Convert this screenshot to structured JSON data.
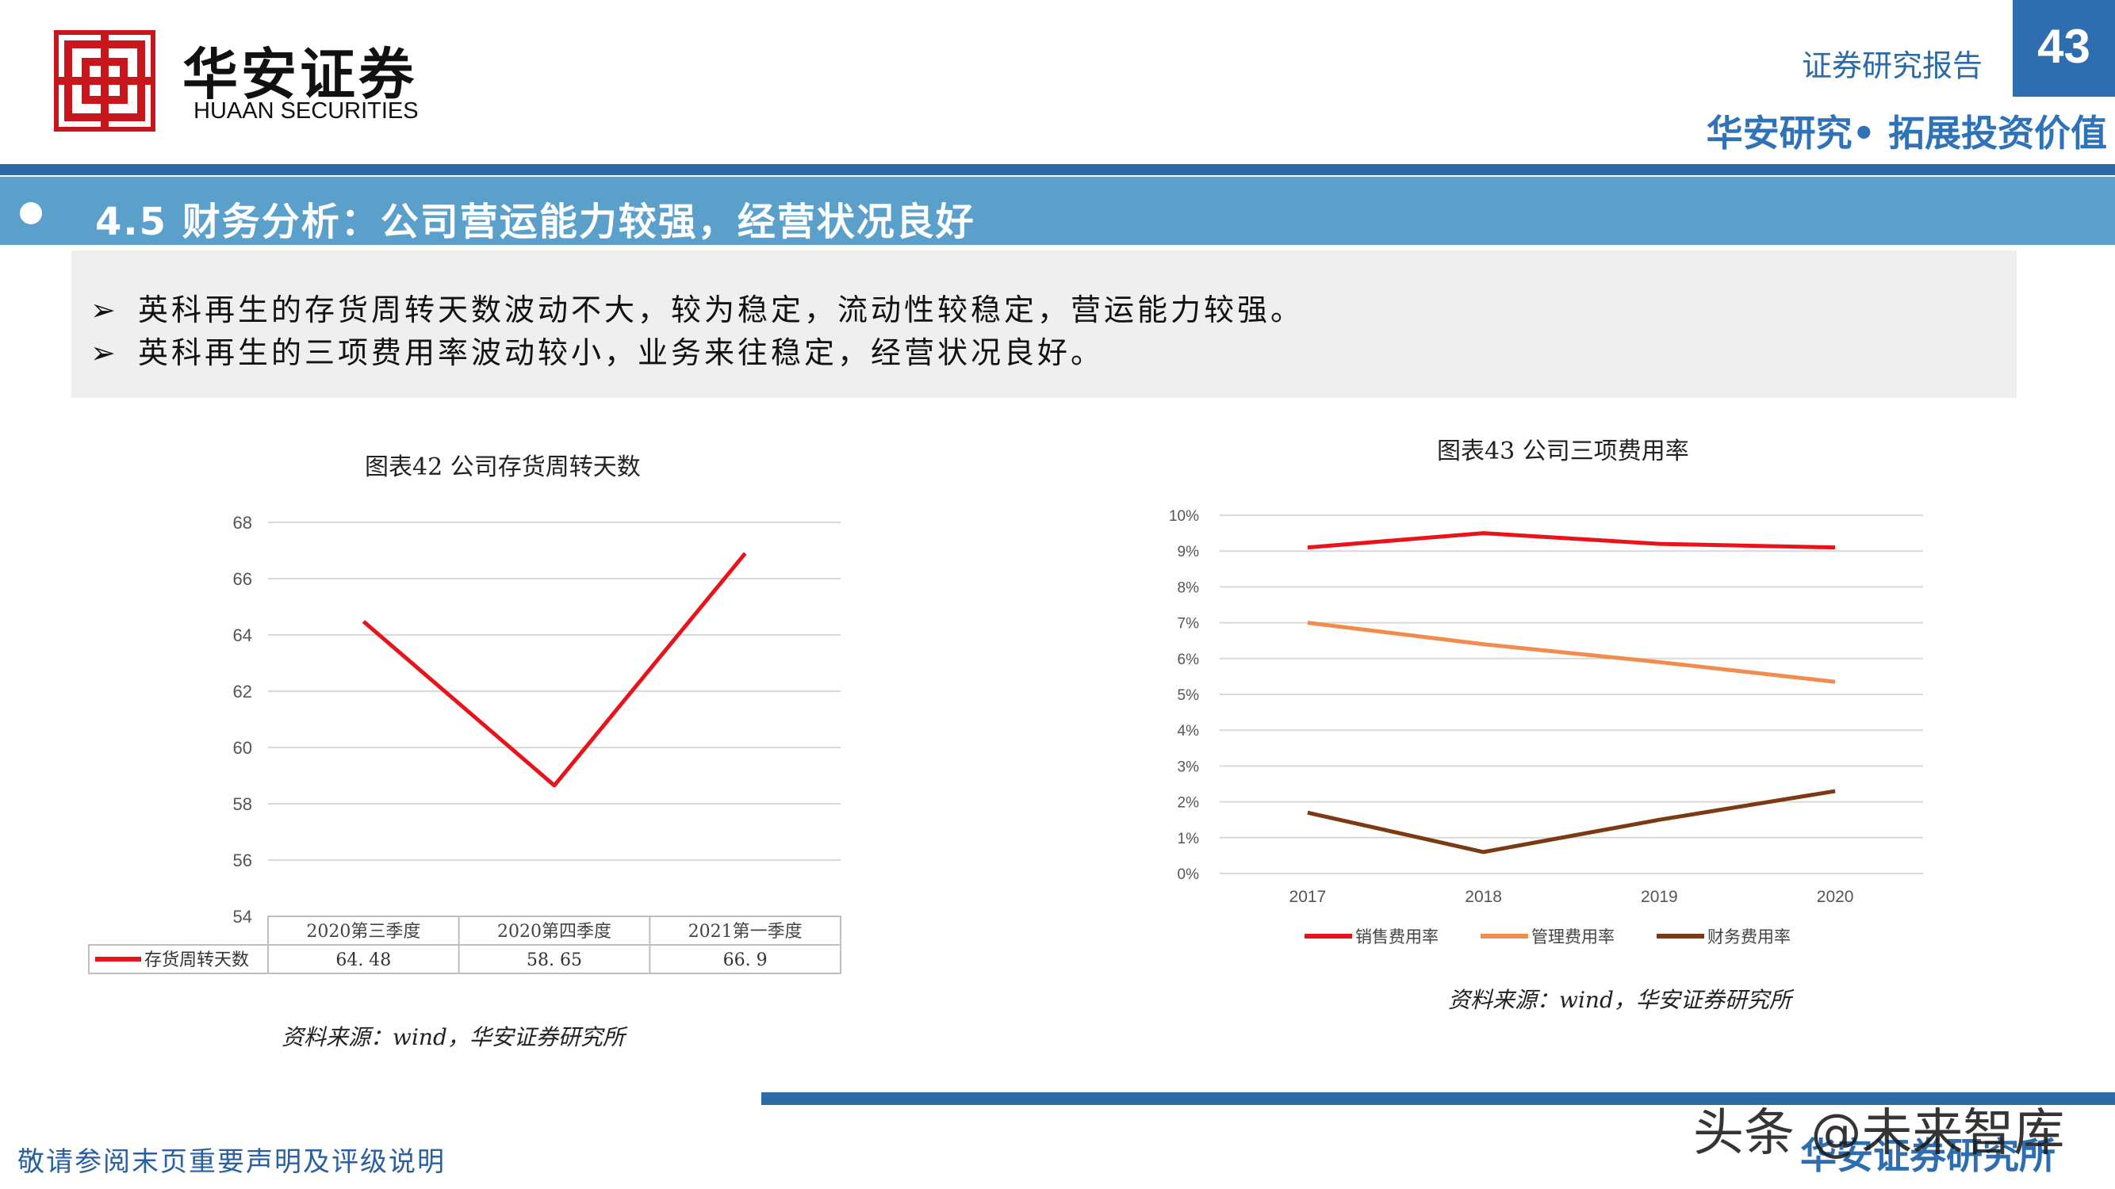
{
  "header": {
    "logo_cn": "华安证券",
    "logo_en": "HUAAN SECURITIES",
    "doc_type": "证券研究报告",
    "page_number": "43",
    "slogan": "华安研究• 拓展投资价值"
  },
  "section": {
    "title": "4.5 财务分析：公司营运能力较强，经营状况良好"
  },
  "bullets": [
    {
      "arrow": "➢",
      "text": "英科再生的存货周转天数波动不大，较为稳定，流动性较稳定，营运能力较强。"
    },
    {
      "arrow": "➢",
      "text": "英科再生的三项费用率波动较小，业务来往稳定，经营状况良好。"
    }
  ],
  "chart_data": [
    {
      "type": "line",
      "title": "图表42 公司存货周转天数",
      "categories": [
        "2020第三季度",
        "2020第四季度",
        "2021第一季度"
      ],
      "series": [
        {
          "name": "存货周转天数",
          "values": [
            64.48,
            58.65,
            66.9
          ],
          "labels": [
            "64. 48",
            "58. 65",
            "66. 9"
          ],
          "color": "#e8141c"
        }
      ],
      "y_ticks": [
        "54",
        "56",
        "58",
        "60",
        "62",
        "64",
        "66",
        "68"
      ],
      "ylim": [
        54,
        68
      ],
      "data_table": true,
      "grid": true,
      "source": "资料来源：wind，华安证券研究所"
    },
    {
      "type": "line",
      "title": "图表43 公司三项费用率",
      "categories": [
        "2017",
        "2018",
        "2019",
        "2020"
      ],
      "series": [
        {
          "name": "销售费用率",
          "values": [
            9.1,
            9.5,
            9.2,
            9.1
          ],
          "color": "#e8141c"
        },
        {
          "name": "管理费用率",
          "values": [
            7.0,
            6.4,
            5.9,
            5.35
          ],
          "color": "#ef8c4e"
        },
        {
          "name": "财务费用率",
          "values": [
            1.7,
            0.6,
            1.5,
            2.3
          ],
          "color": "#7b3b12"
        }
      ],
      "y_ticks": [
        "0%",
        "1%",
        "2%",
        "3%",
        "4%",
        "5%",
        "6%",
        "7%",
        "8%",
        "9%",
        "10%"
      ],
      "ylim": [
        0,
        10
      ],
      "legend": "bottom",
      "grid": true,
      "source": "资料来源：wind，华安证券研究所"
    }
  ],
  "footer": {
    "disclaimer": "敬请参阅末页重要声明及评级说明",
    "org": "华安证券研究所",
    "watermark": "头条 @未来智库"
  },
  "colors": {
    "brand_red": "#c8161d",
    "brand_blue": "#2e6eb0",
    "title_bar": "#5b9fcb"
  }
}
